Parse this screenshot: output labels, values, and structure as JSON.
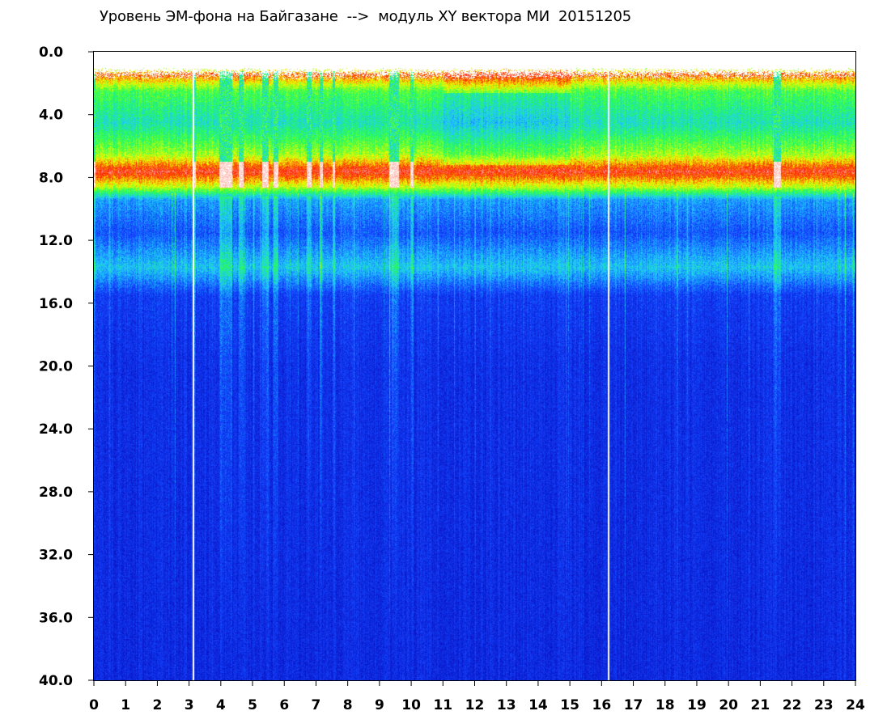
{
  "chart_data": {
    "type": "heatmap",
    "title": "Уровень ЭМ-фона на Байгазане  -->  модуль XY вектора МИ  20151205",
    "xlabel": "",
    "ylabel": "",
    "x_ticks": [
      "0",
      "1",
      "2",
      "3",
      "4",
      "5",
      "6",
      "7",
      "8",
      "9",
      "10",
      "11",
      "12",
      "13",
      "14",
      "15",
      "16",
      "17",
      "18",
      "19",
      "20",
      "21",
      "22",
      "23",
      "24"
    ],
    "y_ticks": [
      "0.0",
      "4.0",
      "8.0",
      "12.0",
      "16.0",
      "20.0",
      "24.0",
      "28.0",
      "32.0",
      "36.0",
      "40.0"
    ],
    "xlim": [
      0,
      24
    ],
    "ylim": [
      0,
      40
    ],
    "y_inverted": true,
    "colormap": [
      "#0a16c8",
      "#1446ff",
      "#1ec8ff",
      "#28ff50",
      "#f0ff00",
      "#ff1e00",
      "#ffffff"
    ],
    "intensity_profile_by_y": [
      {
        "y": 0.0,
        "level": 0.0
      },
      {
        "y": 1.4,
        "level": 0.8
      },
      {
        "y": 2.5,
        "level": 0.52
      },
      {
        "y": 4.5,
        "level": 0.4
      },
      {
        "y": 6.5,
        "level": 0.6
      },
      {
        "y": 7.6,
        "level": 0.86
      },
      {
        "y": 8.6,
        "level": 0.62
      },
      {
        "y": 9.4,
        "level": 0.28
      },
      {
        "y": 11.5,
        "level": 0.18
      },
      {
        "y": 13.7,
        "level": 0.34
      },
      {
        "y": 15.5,
        "level": 0.13
      },
      {
        "y": 20.0,
        "level": 0.09
      },
      {
        "y": 40.0,
        "level": 0.07
      }
    ],
    "quiet_periods_hours": [
      [
        0.0,
        0.05
      ],
      [
        3.1,
        3.2
      ],
      [
        3.95,
        4.35
      ],
      [
        4.55,
        4.7
      ],
      [
        5.3,
        5.5
      ],
      [
        5.65,
        5.8
      ],
      [
        6.7,
        6.85
      ],
      [
        7.1,
        7.2
      ],
      [
        7.5,
        7.6
      ],
      [
        9.3,
        9.6
      ],
      [
        9.95,
        10.05
      ],
      [
        21.4,
        21.65
      ]
    ],
    "data_gaps_hours": [
      3.1,
      16.2
    ],
    "grid": false,
    "legend": "none"
  }
}
